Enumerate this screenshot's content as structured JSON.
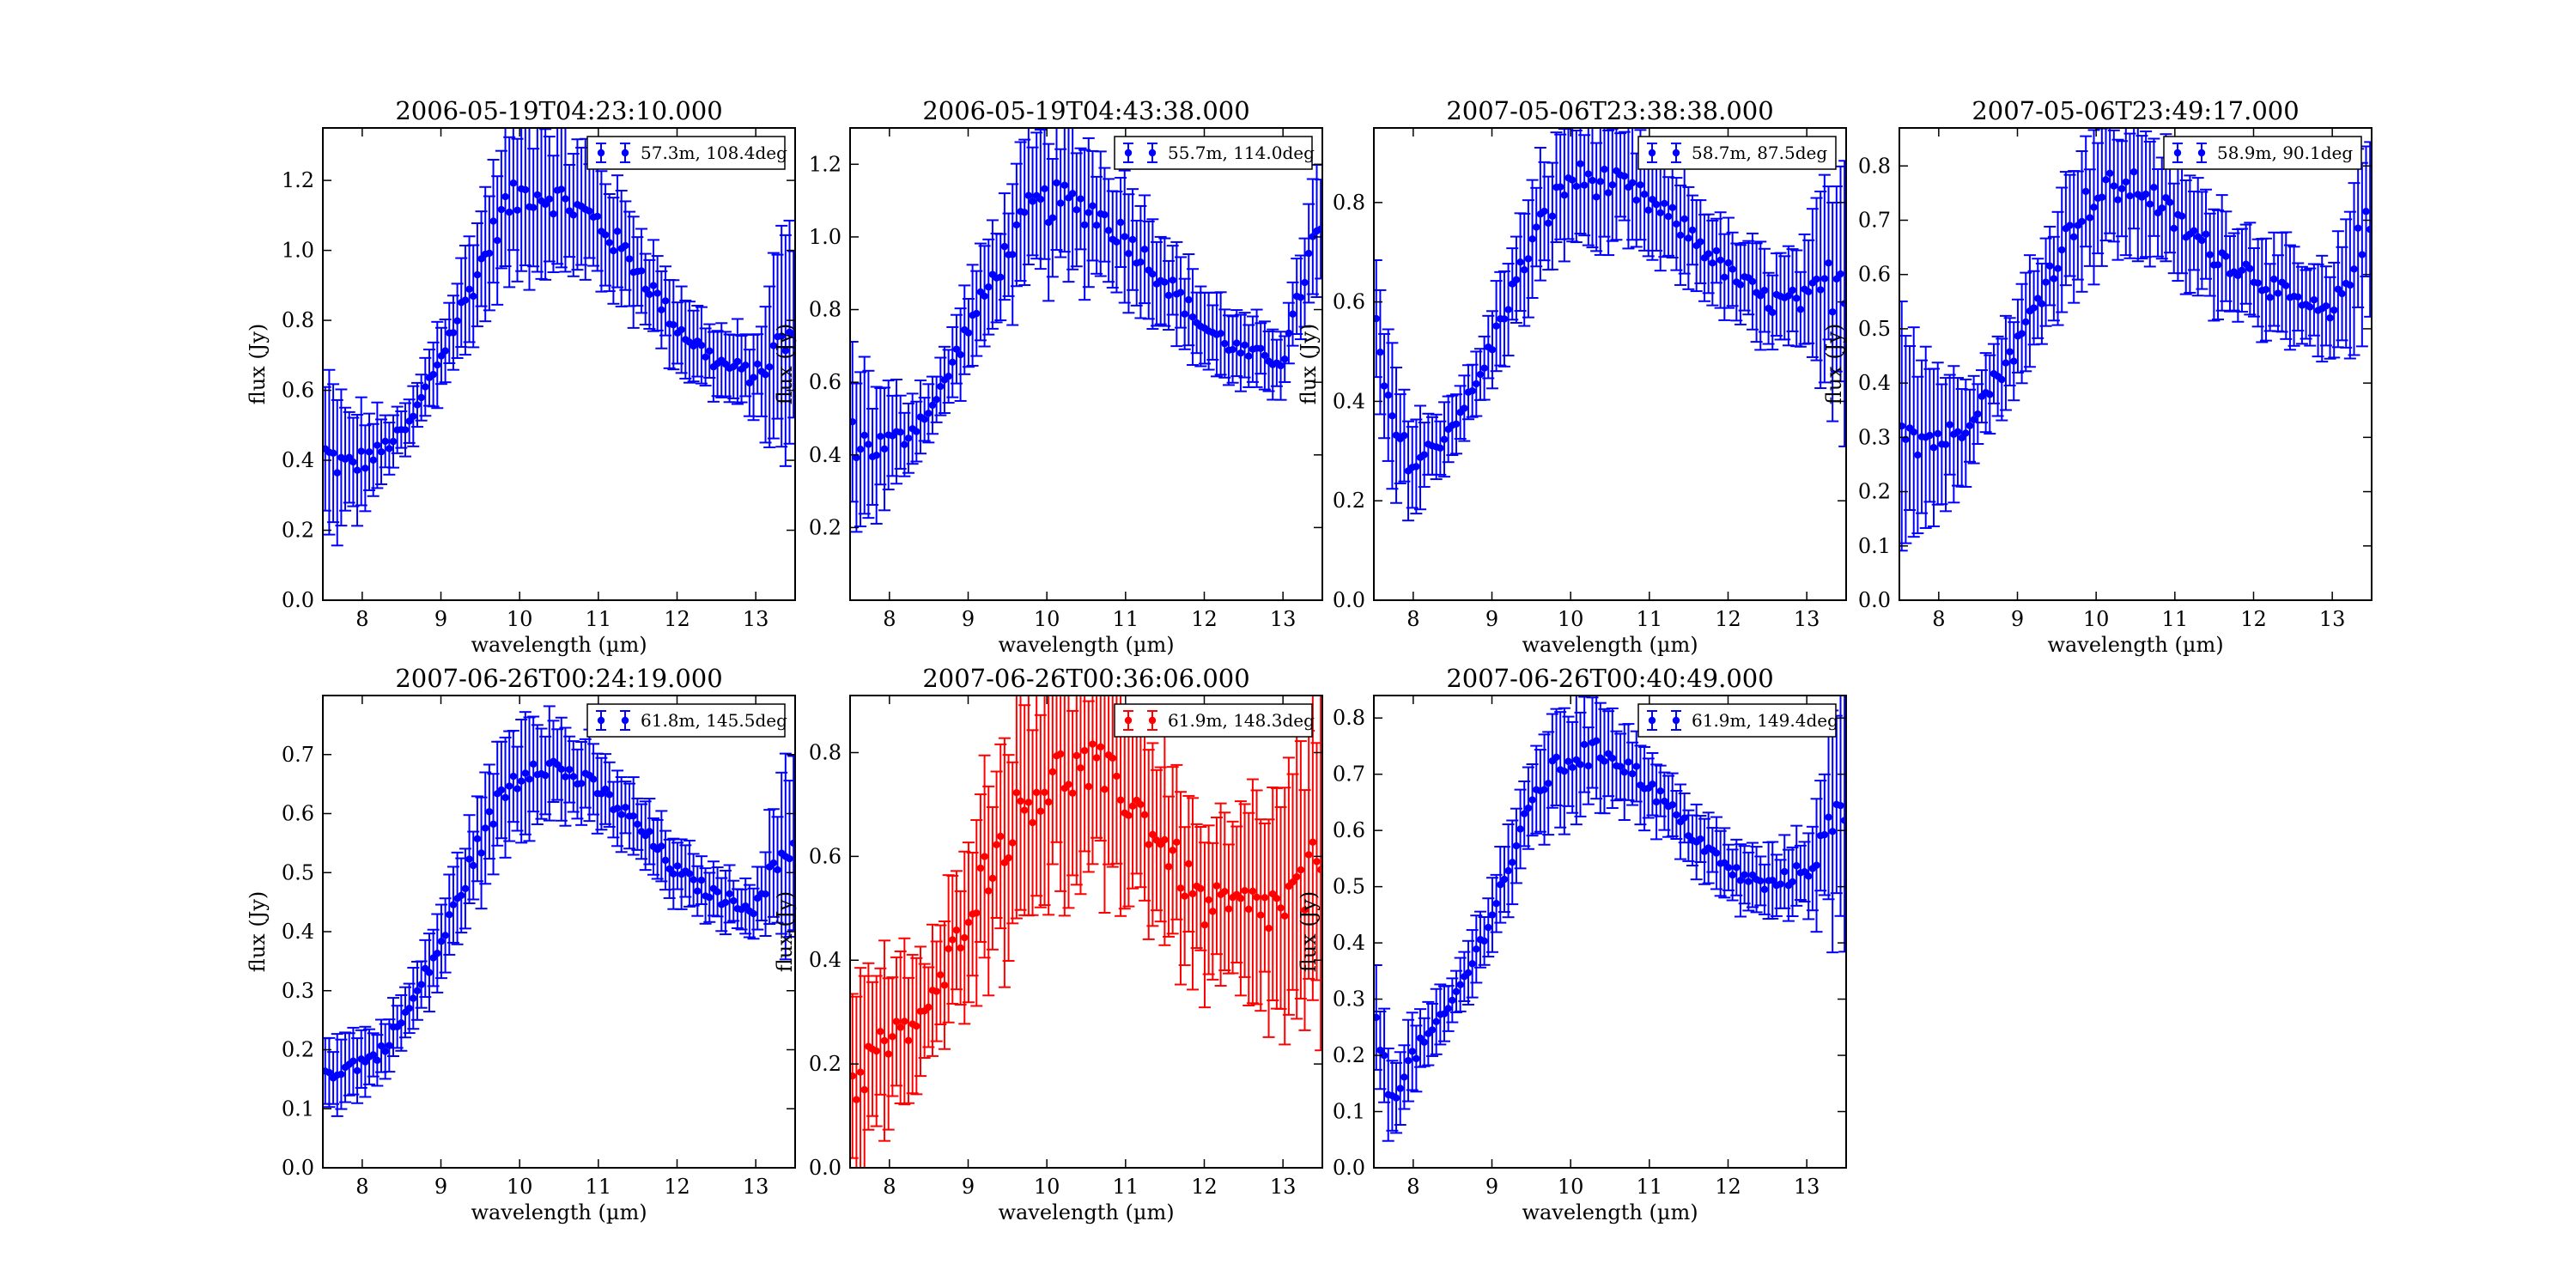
{
  "figure": {
    "xlabel": "wavelength (µm)",
    "ylabel": "flux (Jy)"
  },
  "chart_data": [
    {
      "type": "scatter",
      "title": "2006-05-19T04:23:10.000",
      "xlabel": "wavelength (µm)",
      "ylabel": "flux (Jy)",
      "xlim": [
        7.5,
        13.5
      ],
      "ylim": [
        0,
        1.35
      ],
      "xticks": [
        8,
        9,
        10,
        11,
        12,
        13
      ],
      "yticks": [
        0.0,
        0.2,
        0.4,
        0.6,
        0.8,
        1.0,
        1.2
      ],
      "ytick_labels": [
        "0.0",
        "0.2",
        "0.4",
        "0.6",
        "0.8",
        "1.0",
        "1.2"
      ],
      "color": "#0000ff",
      "legend": "57.3m, 108.4deg",
      "legend_loc": "upper right",
      "error_bars": true,
      "anchors": [
        [
          7.5,
          0.42
        ],
        [
          7.8,
          0.38
        ],
        [
          8.2,
          0.42
        ],
        [
          8.6,
          0.5
        ],
        [
          9.0,
          0.7
        ],
        [
          9.4,
          0.9
        ],
        [
          9.8,
          1.12
        ],
        [
          10.1,
          1.17
        ],
        [
          10.5,
          1.15
        ],
        [
          11.0,
          1.08
        ],
        [
          11.5,
          0.95
        ],
        [
          12.0,
          0.78
        ],
        [
          12.5,
          0.68
        ],
        [
          13.0,
          0.64
        ],
        [
          13.4,
          0.75
        ]
      ],
      "err_anchors": [
        [
          7.5,
          0.2
        ],
        [
          8.5,
          0.06
        ],
        [
          9.5,
          0.15
        ],
        [
          10.0,
          0.2
        ],
        [
          11.0,
          0.16
        ],
        [
          12.0,
          0.1
        ],
        [
          13.0,
          0.1
        ],
        [
          13.4,
          0.3
        ]
      ]
    },
    {
      "type": "scatter",
      "title": "2006-05-19T04:43:38.000",
      "xlabel": "wavelength (µm)",
      "ylabel": "flux (Jy)",
      "xlim": [
        7.5,
        13.5
      ],
      "ylim": [
        0,
        1.3
      ],
      "xticks": [
        8,
        9,
        10,
        11,
        12,
        13
      ],
      "yticks": [
        0.2,
        0.4,
        0.6,
        0.8,
        1.0,
        1.2
      ],
      "ytick_labels": [
        "0.2",
        "0.4",
        "0.6",
        "0.8",
        "1.0",
        "1.2"
      ],
      "color": "#0000ff",
      "legend": "55.7m, 114.0deg",
      "legend_loc": "upper right",
      "error_bars": true,
      "anchors": [
        [
          7.5,
          0.45
        ],
        [
          7.8,
          0.42
        ],
        [
          8.2,
          0.45
        ],
        [
          8.6,
          0.55
        ],
        [
          9.0,
          0.75
        ],
        [
          9.4,
          0.92
        ],
        [
          9.8,
          1.08
        ],
        [
          10.2,
          1.1
        ],
        [
          10.6,
          1.07
        ],
        [
          11.0,
          1.0
        ],
        [
          11.5,
          0.88
        ],
        [
          12.0,
          0.75
        ],
        [
          12.5,
          0.68
        ],
        [
          13.0,
          0.66
        ],
        [
          13.4,
          1.0
        ]
      ],
      "err_anchors": [
        [
          7.5,
          0.2
        ],
        [
          8.5,
          0.07
        ],
        [
          9.5,
          0.15
        ],
        [
          10.0,
          0.2
        ],
        [
          11.0,
          0.15
        ],
        [
          12.0,
          0.1
        ],
        [
          13.0,
          0.08
        ],
        [
          13.4,
          0.15
        ]
      ]
    },
    {
      "type": "scatter",
      "title": "2007-05-06T23:38:38.000",
      "xlabel": "wavelength (µm)",
      "ylabel": "flux (Jy)",
      "xlim": [
        7.5,
        13.5
      ],
      "ylim": [
        0,
        0.95
      ],
      "xticks": [
        8,
        9,
        10,
        11,
        12,
        13
      ],
      "yticks": [
        0.0,
        0.2,
        0.4,
        0.6,
        0.8
      ],
      "ytick_labels": [
        "0.0",
        "0.2",
        "0.4",
        "0.6",
        "0.8"
      ],
      "color": "#0000ff",
      "legend": "58.7m, 87.5deg",
      "legend_loc": "upper right",
      "error_bars": true,
      "anchors": [
        [
          7.5,
          0.58
        ],
        [
          7.7,
          0.36
        ],
        [
          8.0,
          0.27
        ],
        [
          8.4,
          0.33
        ],
        [
          8.8,
          0.43
        ],
        [
          9.2,
          0.6
        ],
        [
          9.6,
          0.75
        ],
        [
          10.0,
          0.85
        ],
        [
          10.5,
          0.84
        ],
        [
          11.0,
          0.8
        ],
        [
          11.5,
          0.74
        ],
        [
          12.0,
          0.66
        ],
        [
          12.5,
          0.6
        ],
        [
          13.0,
          0.6
        ],
        [
          13.4,
          0.65
        ]
      ],
      "err_anchors": [
        [
          7.5,
          0.15
        ],
        [
          8.0,
          0.1
        ],
        [
          8.5,
          0.05
        ],
        [
          9.5,
          0.1
        ],
        [
          10.0,
          0.13
        ],
        [
          11.0,
          0.1
        ],
        [
          12.0,
          0.08
        ],
        [
          13.0,
          0.1
        ],
        [
          13.4,
          0.25
        ]
      ]
    },
    {
      "type": "scatter",
      "title": "2007-05-06T23:49:17.000",
      "xlabel": "wavelength (µm)",
      "ylabel": "flux (Jy)",
      "xlim": [
        7.5,
        13.5
      ],
      "ylim": [
        0,
        0.87
      ],
      "xticks": [
        8,
        9,
        10,
        11,
        12,
        13
      ],
      "yticks": [
        0.0,
        0.1,
        0.2,
        0.3,
        0.4,
        0.5,
        0.6,
        0.7,
        0.8
      ],
      "ytick_labels": [
        "0.0",
        "0.1",
        "0.2",
        "0.3",
        "0.4",
        "0.5",
        "0.6",
        "0.7",
        "0.8"
      ],
      "color": "#0000ff",
      "legend": "58.9m, 90.1deg",
      "legend_loc": "upper right",
      "error_bars": true,
      "anchors": [
        [
          7.5,
          0.35
        ],
        [
          7.8,
          0.3
        ],
        [
          8.2,
          0.3
        ],
        [
          8.6,
          0.38
        ],
        [
          9.0,
          0.47
        ],
        [
          9.4,
          0.6
        ],
        [
          9.8,
          0.72
        ],
        [
          10.2,
          0.76
        ],
        [
          10.6,
          0.76
        ],
        [
          11.0,
          0.7
        ],
        [
          11.5,
          0.64
        ],
        [
          12.0,
          0.6
        ],
        [
          12.5,
          0.55
        ],
        [
          13.0,
          0.52
        ],
        [
          13.4,
          0.68
        ]
      ],
      "err_anchors": [
        [
          7.5,
          0.2
        ],
        [
          8.5,
          0.06
        ],
        [
          9.5,
          0.1
        ],
        [
          10.0,
          0.12
        ],
        [
          11.0,
          0.1
        ],
        [
          12.0,
          0.08
        ],
        [
          13.0,
          0.08
        ],
        [
          13.4,
          0.15
        ]
      ]
    },
    {
      "type": "scatter",
      "title": "2007-06-26T00:24:19.000",
      "xlabel": "wavelength (µm)",
      "ylabel": "flux (Jy)",
      "xlim": [
        7.5,
        13.5
      ],
      "ylim": [
        0,
        0.8
      ],
      "xticks": [
        8,
        9,
        10,
        11,
        12,
        13
      ],
      "yticks": [
        0.0,
        0.1,
        0.2,
        0.3,
        0.4,
        0.5,
        0.6,
        0.7
      ],
      "ytick_labels": [
        "0.0",
        "0.1",
        "0.2",
        "0.3",
        "0.4",
        "0.5",
        "0.6",
        "0.7"
      ],
      "color": "#0000ff",
      "legend": "61.8m, 145.5deg",
      "legend_loc": "upper right",
      "error_bars": true,
      "anchors": [
        [
          7.5,
          0.16
        ],
        [
          7.8,
          0.17
        ],
        [
          8.2,
          0.19
        ],
        [
          8.6,
          0.27
        ],
        [
          9.0,
          0.38
        ],
        [
          9.4,
          0.52
        ],
        [
          9.8,
          0.64
        ],
        [
          10.2,
          0.69
        ],
        [
          10.6,
          0.67
        ],
        [
          11.0,
          0.64
        ],
        [
          11.5,
          0.58
        ],
        [
          12.0,
          0.5
        ],
        [
          12.5,
          0.46
        ],
        [
          13.0,
          0.44
        ],
        [
          13.4,
          0.55
        ]
      ],
      "err_anchors": [
        [
          7.5,
          0.06
        ],
        [
          8.5,
          0.04
        ],
        [
          9.5,
          0.08
        ],
        [
          10.0,
          0.09
        ],
        [
          11.0,
          0.06
        ],
        [
          12.0,
          0.05
        ],
        [
          13.0,
          0.04
        ],
        [
          13.4,
          0.15
        ]
      ]
    },
    {
      "type": "scatter",
      "title": "2007-06-26T00:36:06.000",
      "xlabel": "wavelength (µm)",
      "ylabel": "flux (Jy)",
      "xlim": [
        7.5,
        13.5
      ],
      "ylim": [
        0,
        0.91
      ],
      "xticks": [
        8,
        9,
        10,
        11,
        12,
        13
      ],
      "yticks": [
        0.0,
        0.2,
        0.4,
        0.6,
        0.8
      ],
      "ytick_labels": [
        "0.0",
        "0.2",
        "0.4",
        "0.6",
        "0.8"
      ],
      "color": "#ff0000",
      "legend": "61.9m, 148.3deg",
      "legend_loc": "upper right",
      "error_bars": true,
      "anchors": [
        [
          7.5,
          0.15
        ],
        [
          7.8,
          0.22
        ],
        [
          8.2,
          0.26
        ],
        [
          8.6,
          0.33
        ],
        [
          9.0,
          0.5
        ],
        [
          9.4,
          0.62
        ],
        [
          9.8,
          0.72
        ],
        [
          10.2,
          0.76
        ],
        [
          10.6,
          0.77
        ],
        [
          11.0,
          0.72
        ],
        [
          11.5,
          0.62
        ],
        [
          12.0,
          0.5
        ],
        [
          12.5,
          0.5
        ],
        [
          13.0,
          0.5
        ],
        [
          13.4,
          0.55
        ]
      ],
      "err_anchors": [
        [
          7.5,
          0.2
        ],
        [
          8.5,
          0.1
        ],
        [
          9.5,
          0.2
        ],
        [
          10.0,
          0.22
        ],
        [
          11.0,
          0.18
        ],
        [
          12.0,
          0.15
        ],
        [
          13.0,
          0.2
        ],
        [
          13.4,
          0.3
        ]
      ]
    },
    {
      "type": "scatter",
      "title": "2007-06-26T00:40:49.000",
      "xlabel": "wavelength (µm)",
      "ylabel": "flux (Jy)",
      "xlim": [
        7.5,
        13.5
      ],
      "ylim": [
        0,
        0.84
      ],
      "xticks": [
        8,
        9,
        10,
        11,
        12,
        13
      ],
      "yticks": [
        0.0,
        0.1,
        0.2,
        0.3,
        0.4,
        0.5,
        0.6,
        0.7,
        0.8
      ],
      "ytick_labels": [
        "0.0",
        "0.1",
        "0.2",
        "0.3",
        "0.4",
        "0.5",
        "0.6",
        "0.7",
        "0.8"
      ],
      "color": "#0000ff",
      "legend": "61.9m, 149.4deg",
      "legend_loc": "upper right",
      "error_bars": true,
      "anchors": [
        [
          7.5,
          0.3
        ],
        [
          7.7,
          0.12
        ],
        [
          8.0,
          0.2
        ],
        [
          8.4,
          0.27
        ],
        [
          8.8,
          0.38
        ],
        [
          9.2,
          0.53
        ],
        [
          9.6,
          0.68
        ],
        [
          10.0,
          0.73
        ],
        [
          10.5,
          0.74
        ],
        [
          11.0,
          0.68
        ],
        [
          11.5,
          0.6
        ],
        [
          12.0,
          0.53
        ],
        [
          12.5,
          0.5
        ],
        [
          13.0,
          0.53
        ],
        [
          13.4,
          0.62
        ]
      ],
      "err_anchors": [
        [
          7.5,
          0.08
        ],
        [
          8.5,
          0.04
        ],
        [
          9.5,
          0.08
        ],
        [
          10.0,
          0.1
        ],
        [
          11.0,
          0.06
        ],
        [
          12.0,
          0.05
        ],
        [
          13.0,
          0.06
        ],
        [
          13.4,
          0.2
        ]
      ]
    }
  ]
}
